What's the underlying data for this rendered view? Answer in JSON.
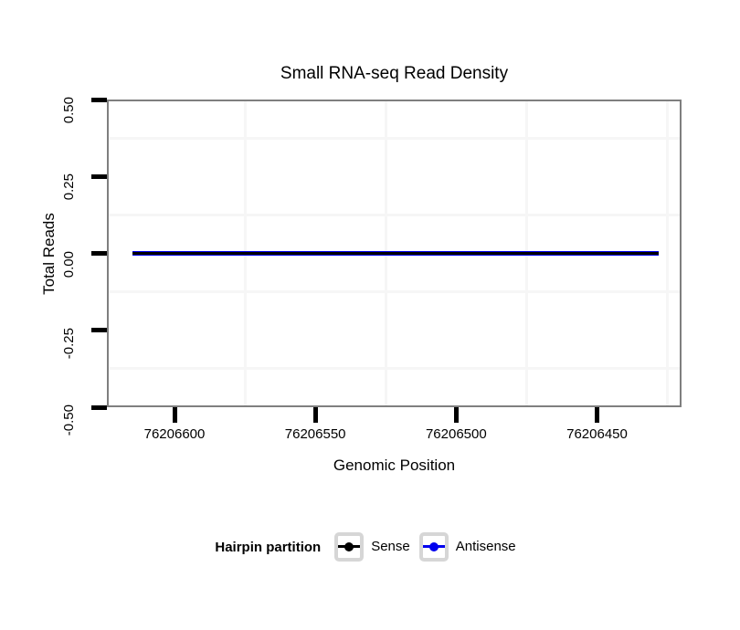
{
  "chart_data": {
    "type": "line",
    "title": "Small RNA-seq Read Density",
    "xlabel": "Genomic Position",
    "ylabel": "Total Reads",
    "x_axis": {
      "reversed": true,
      "ticks": [
        76206600,
        76206550,
        76206500,
        76206450
      ],
      "tick_labels": [
        "76206600",
        "76206550",
        "76206500",
        "76206450"
      ],
      "minor_gridlines": [
        76206575,
        76206525,
        76206475,
        76206425
      ],
      "range_left": 76206624,
      "range_right": 76206420
    },
    "y_axis": {
      "ticks": [
        0.5,
        0.25,
        0,
        -0.25,
        -0.5
      ],
      "tick_labels": [
        "0.50",
        "0.25",
        "0.00",
        "-0.25",
        "-0.50"
      ],
      "minor_gridlines": [
        0.375,
        0.125,
        -0.125,
        -0.375
      ],
      "max": 0.5,
      "min": -0.5
    },
    "series": [
      {
        "name": "Sense",
        "color": "#000000",
        "y": 0,
        "x_from": 76206615,
        "x_to": 76206428
      },
      {
        "name": "Antisense",
        "color": "#0000EE",
        "y": 0,
        "x_from": 76206615,
        "x_to": 76206428
      }
    ],
    "legend": {
      "title": "Hairpin partition",
      "position": "bottom",
      "entries": [
        {
          "label": "Sense",
          "color": "#000000"
        },
        {
          "label": "Antisense",
          "color": "#0000EE"
        }
      ]
    },
    "grid": {
      "major": false,
      "minor": true
    }
  },
  "colors": {
    "grid_minor": "#f6f6f6",
    "panel_border": "#7f7f7f",
    "tick": "#000000",
    "legend_key_border": "#d6d6d6",
    "text": "#000000"
  }
}
